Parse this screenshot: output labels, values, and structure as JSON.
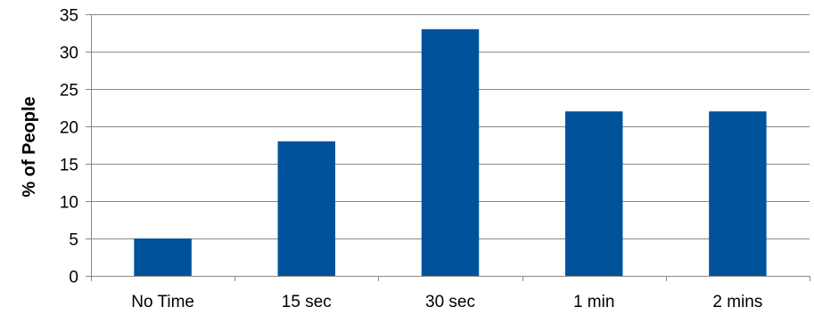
{
  "chart_data": {
    "type": "bar",
    "title": "",
    "xlabel": "",
    "ylabel": "% of People",
    "categories": [
      "No Time",
      "15 sec",
      "30 sec",
      "1 min",
      "2 mins"
    ],
    "values": [
      5,
      18,
      33,
      22,
      22
    ],
    "ylim": [
      0,
      35
    ],
    "yticks": [
      0,
      5,
      10,
      15,
      20,
      25,
      30,
      35
    ],
    "grid": true,
    "legend": "none",
    "colors": {
      "bar": "#00539B",
      "grid": "#898989",
      "axis": "#898989"
    }
  }
}
